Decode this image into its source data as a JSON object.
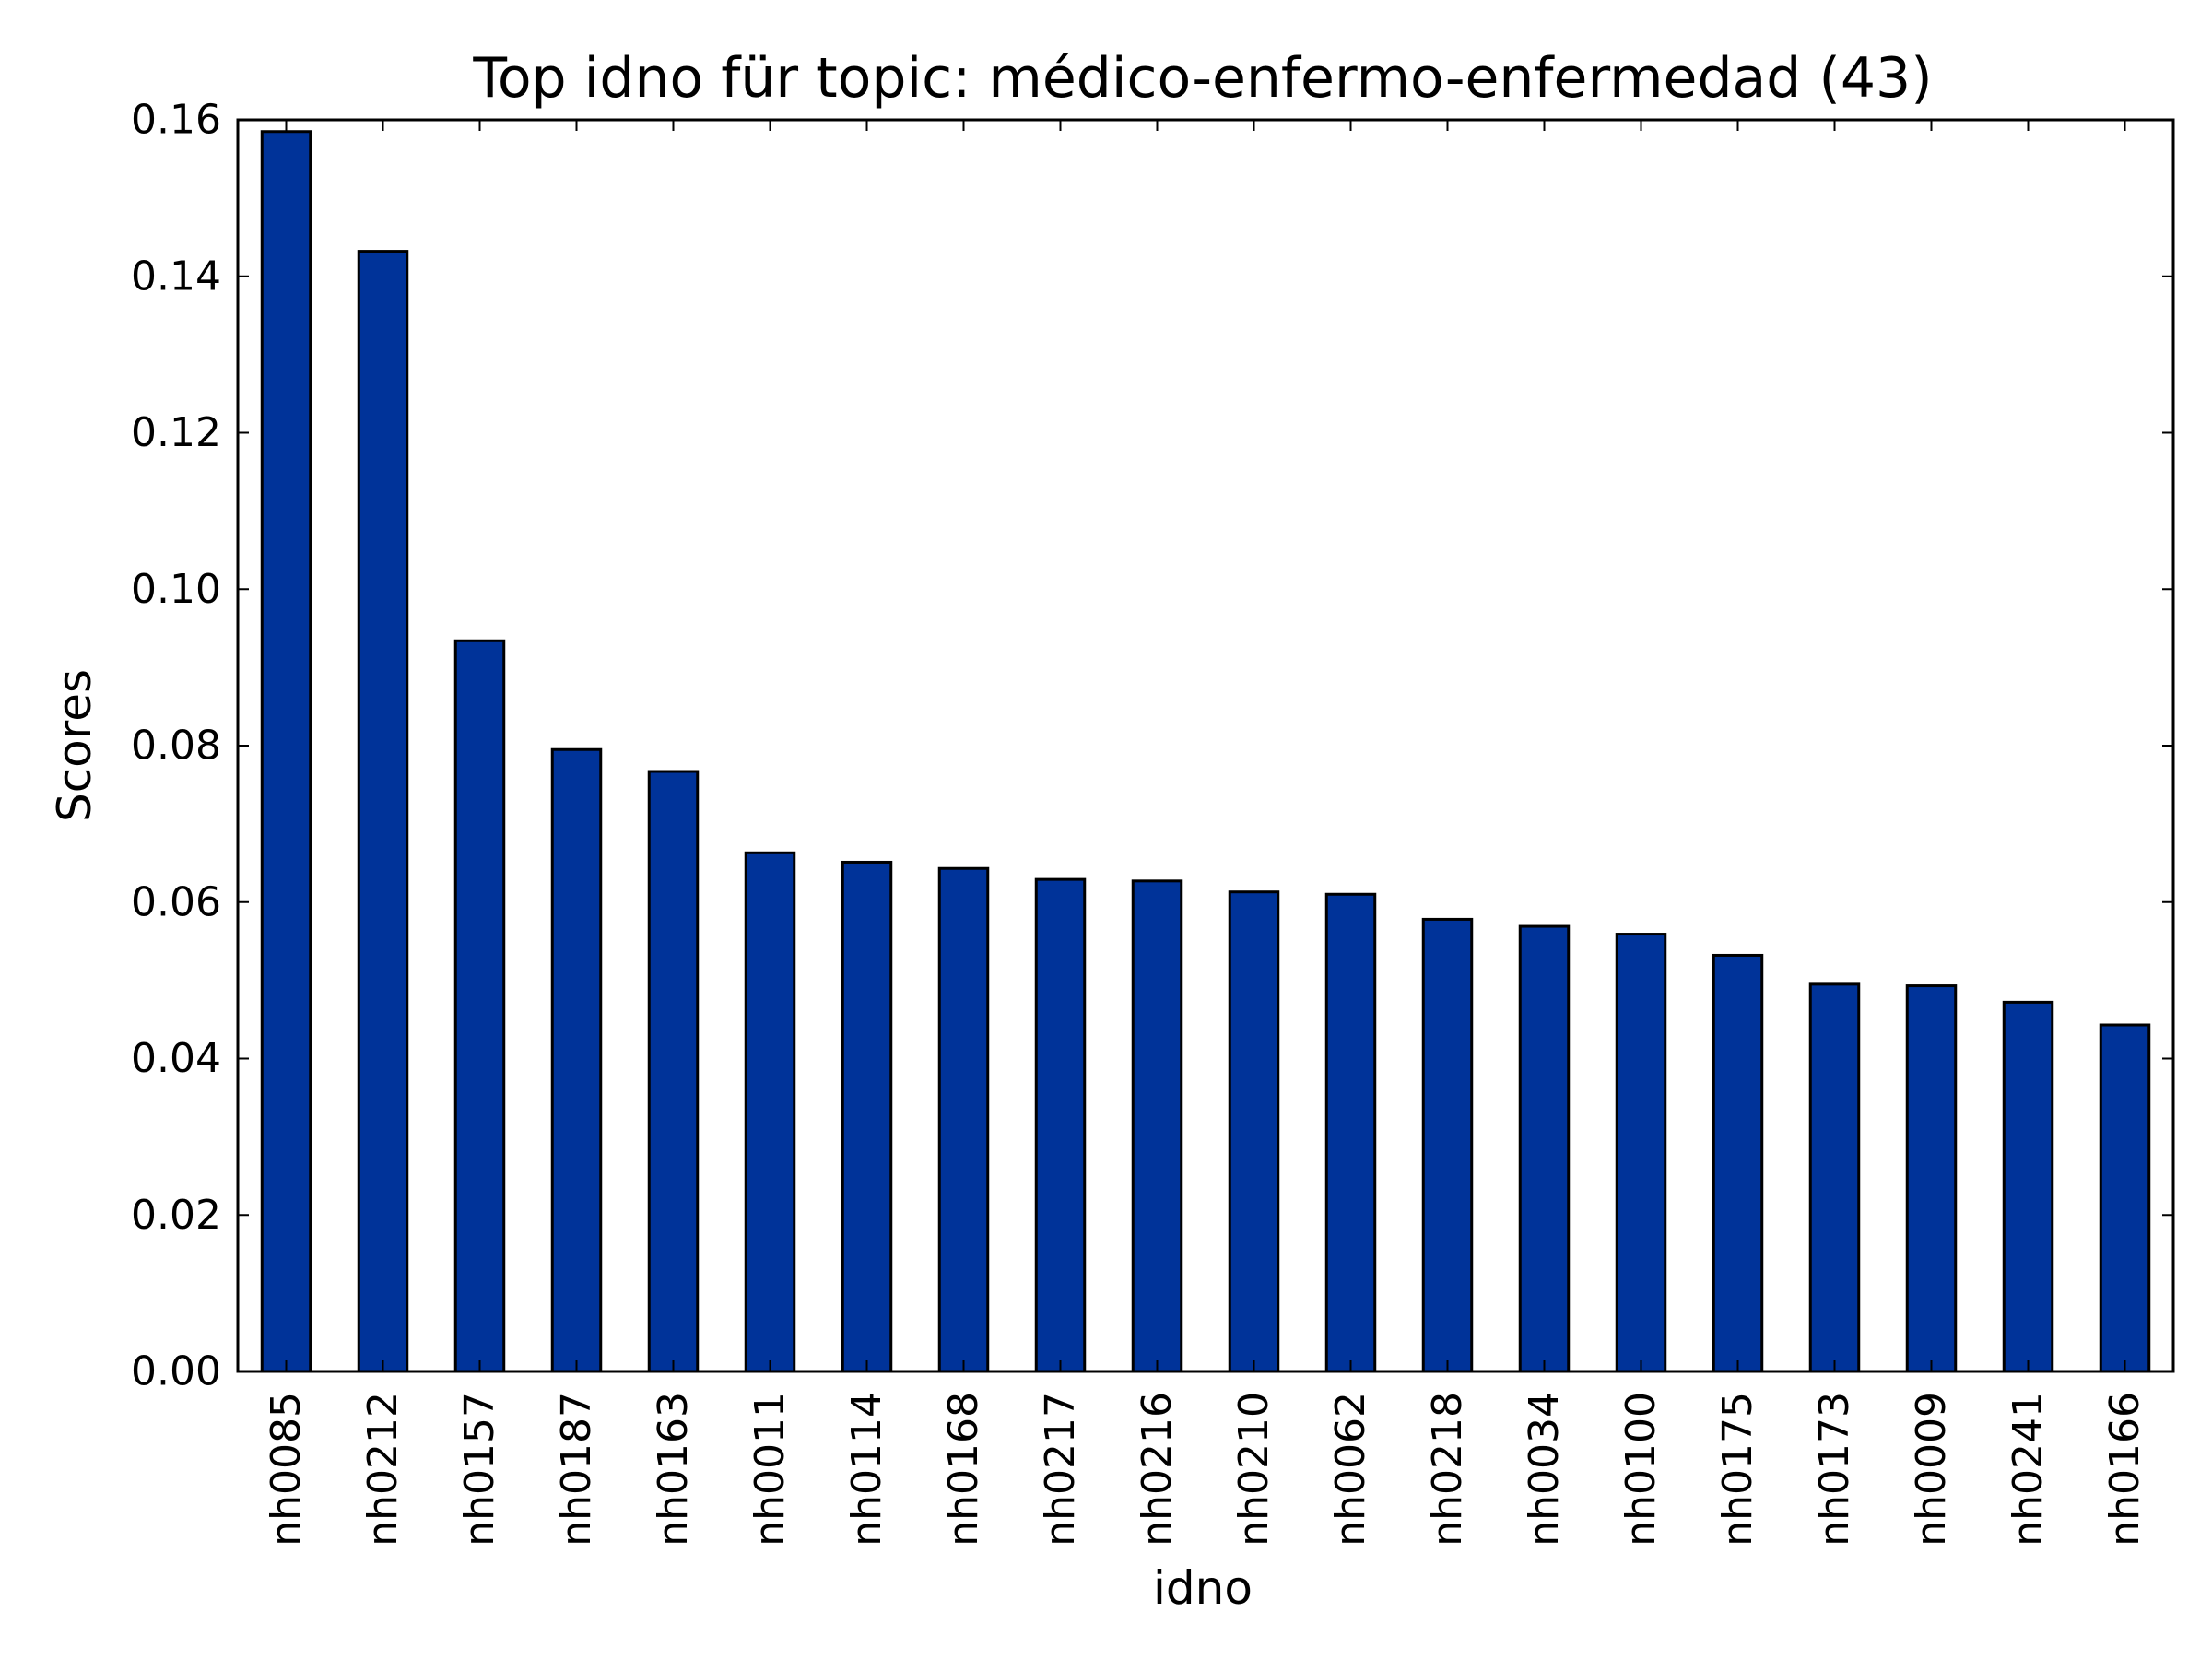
{
  "chart_data": {
    "type": "bar",
    "title": "Top idno für topic: médico-enfermo-enfermedad (43)",
    "xlabel": "idno",
    "ylabel": "Scores",
    "categories": [
      "nh0085",
      "nh0212",
      "nh0157",
      "nh0187",
      "nh0163",
      "nh0011",
      "nh0114",
      "nh0168",
      "nh0217",
      "nh0216",
      "nh0210",
      "nh0062",
      "nh0218",
      "nh0034",
      "nh0100",
      "nh0175",
      "nh0173",
      "nh0009",
      "nh0241",
      "nh0166"
    ],
    "values": [
      0.1585,
      0.1432,
      0.0934,
      0.0795,
      0.0767,
      0.0663,
      0.0651,
      0.0643,
      0.0629,
      0.0627,
      0.0613,
      0.061,
      0.0578,
      0.0569,
      0.0559,
      0.0532,
      0.0495,
      0.0493,
      0.0472,
      0.0443
    ],
    "ylim": [
      0,
      0.16
    ],
    "yticks": [
      0,
      0.02,
      0.04,
      0.06,
      0.08,
      0.1,
      0.12,
      0.14,
      0.16
    ],
    "ytick_labels": [
      "0.00",
      "0.02",
      "0.04",
      "0.06",
      "0.08",
      "0.10",
      "0.12",
      "0.14",
      "0.16"
    ],
    "grid": false,
    "bar_color": "#003399"
  }
}
